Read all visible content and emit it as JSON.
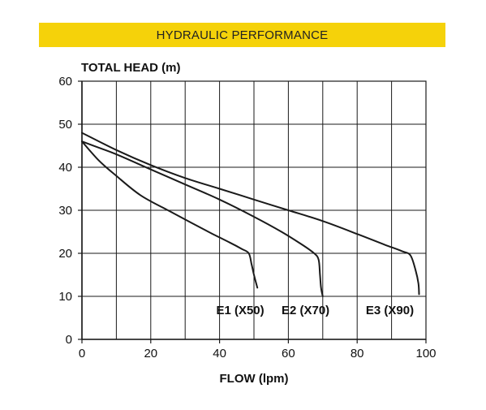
{
  "banner": {
    "title": "HYDRAULIC PERFORMANCE",
    "color": "#f5d20a"
  },
  "chart_data": {
    "type": "line",
    "ylabel": "TOTAL HEAD (m)",
    "xlabel": "FLOW (lpm)",
    "xlim": [
      0,
      100
    ],
    "ylim": [
      0,
      60
    ],
    "xticks": [
      0,
      20,
      40,
      60,
      80,
      100
    ],
    "yticks": [
      0,
      10,
      20,
      30,
      40,
      50,
      60
    ],
    "grid": true,
    "legend": "inline labels below curve ends",
    "line_color": "#1a1a1a",
    "series": [
      {
        "name": "E1 (X50)",
        "label_at": [
          46,
          7
        ],
        "x": [
          0,
          5,
          10,
          17,
          25,
          32,
          38,
          43,
          46.5,
          48.5,
          49.3,
          50,
          51
        ],
        "y": [
          46,
          41.5,
          38,
          33.5,
          30,
          27,
          24.5,
          22.5,
          21,
          20,
          17.5,
          15,
          12
        ]
      },
      {
        "name": "E2 (X70)",
        "label_at": [
          65,
          7
        ],
        "x": [
          0,
          5,
          10,
          20,
          30,
          40,
          50,
          58,
          64,
          67.5,
          68.8,
          69.2,
          69.5,
          70
        ],
        "y": [
          46,
          44.5,
          43,
          39.5,
          36,
          32.5,
          28.5,
          25,
          22,
          20,
          18.5,
          15,
          12,
          10
        ]
      },
      {
        "name": "E3 (X90)",
        "label_at": [
          89.5,
          7
        ],
        "x": [
          0,
          10,
          20,
          30,
          40,
          50,
          60,
          70,
          80,
          88,
          93,
          95.5,
          97,
          97.8,
          98
        ],
        "y": [
          48,
          44,
          40.5,
          37.5,
          35,
          32.5,
          30,
          27.5,
          24.5,
          22,
          20.5,
          19.5,
          16,
          13,
          10.5
        ]
      }
    ]
  }
}
